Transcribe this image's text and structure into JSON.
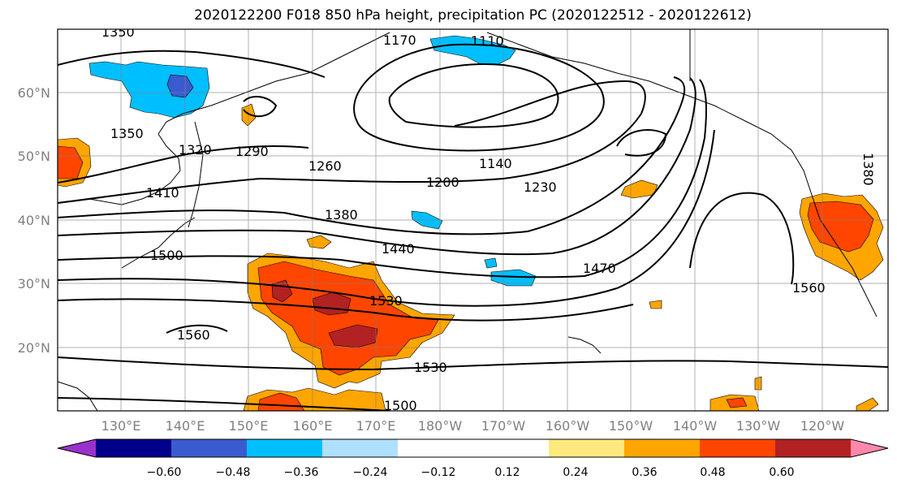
{
  "title": "2020122200 F018 850 hPa height, precipitation PC (2020122512 - 2020122612)",
  "map": {
    "lat_ticks": [
      "60°N",
      "50°N",
      "40°N",
      "30°N",
      "20°N"
    ],
    "lon_ticks": [
      "130°E",
      "140°E",
      "150°E",
      "160°E",
      "170°E",
      "180°W",
      "170°W",
      "160°W",
      "150°W",
      "140°W",
      "130°W",
      "120°W"
    ],
    "contour_labels": [
      "1350",
      "1170",
      "1110",
      "1350",
      "1320",
      "1290",
      "1260",
      "1140",
      "1200",
      "1230",
      "1410",
      "1380",
      "1440",
      "1470",
      "1500",
      "1530",
      "1560",
      "1560",
      "1530",
      "1500",
      "1380"
    ]
  },
  "colorbar": {
    "colors": [
      "#9932cc",
      "#00008b",
      "#3a5bcf",
      "#00bfff",
      "#b0e0ff",
      "#ffffff",
      "#ffffff",
      "#ffe97f",
      "#ffa500",
      "#ff4500",
      "#b22222",
      "#ff88aa"
    ],
    "ticks": [
      "−0.60",
      "−0.48",
      "−0.36",
      "−0.24",
      "−0.12",
      "0.12",
      "0.24",
      "0.36",
      "0.48",
      "0.60"
    ]
  }
}
